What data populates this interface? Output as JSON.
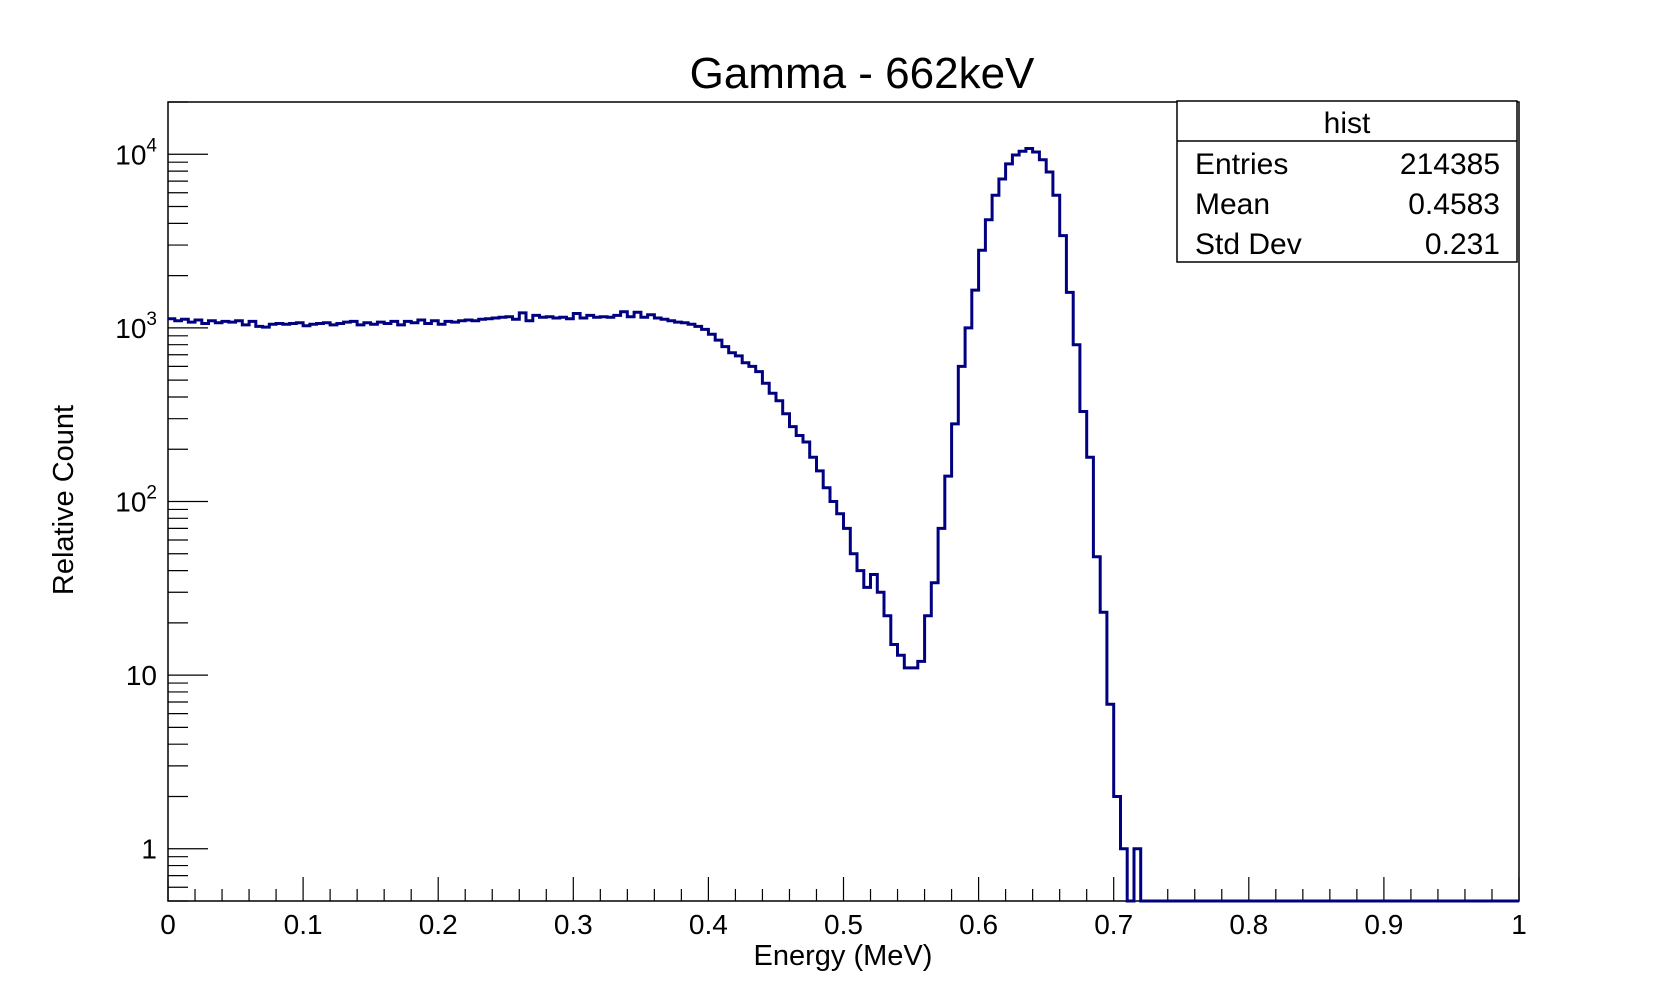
{
  "chart_data": {
    "type": "histogram",
    "title": "Gamma - 662keV",
    "xlabel": "Energy (MeV)",
    "ylabel": "Relative Count",
    "xlim": [
      0,
      1
    ],
    "ylim": [
      0.5,
      20000
    ],
    "y_scale": "log",
    "grid": false,
    "x_tick_labels": [
      "0",
      "0.1",
      "0.2",
      "0.3",
      "0.4",
      "0.5",
      "0.6",
      "0.7",
      "0.8",
      "0.9",
      "1"
    ],
    "y_tick_labels": [
      {
        "value": 1,
        "base": "1",
        "exp": ""
      },
      {
        "value": 10,
        "base": "10",
        "exp": ""
      },
      {
        "value": 100,
        "base": "10",
        "exp": "2"
      },
      {
        "value": 1000,
        "base": "10",
        "exp": "3"
      },
      {
        "value": 10000,
        "base": "10",
        "exp": "4"
      }
    ],
    "series": [
      {
        "color": "#000080",
        "bin_width": 0.005,
        "x_start": 0,
        "values": [
          1130,
          1100,
          1120,
          1080,
          1110,
          1060,
          1100,
          1070,
          1090,
          1080,
          1100,
          1040,
          1090,
          1020,
          1010,
          1050,
          1060,
          1050,
          1060,
          1070,
          1030,
          1050,
          1060,
          1070,
          1040,
          1060,
          1080,
          1090,
          1040,
          1070,
          1050,
          1080,
          1060,
          1090,
          1040,
          1090,
          1070,
          1110,
          1060,
          1100,
          1050,
          1090,
          1080,
          1100,
          1110,
          1100,
          1120,
          1130,
          1140,
          1150,
          1160,
          1120,
          1220,
          1100,
          1180,
          1150,
          1160,
          1140,
          1150,
          1130,
          1210,
          1140,
          1180,
          1150,
          1160,
          1150,
          1180,
          1240,
          1160,
          1230,
          1150,
          1190,
          1140,
          1120,
          1100,
          1080,
          1070,
          1050,
          1020,
          980,
          920,
          850,
          780,
          720,
          690,
          630,
          600,
          560,
          480,
          420,
          380,
          320,
          270,
          240,
          220,
          180,
          150,
          120,
          100,
          85,
          70,
          50,
          40,
          32,
          38,
          30,
          22,
          15,
          13,
          11,
          11,
          12,
          22,
          34,
          70,
          140,
          280,
          600,
          1000,
          1650,
          2800,
          4200,
          5800,
          7200,
          8800,
          9900,
          10400,
          10800,
          10300,
          9300,
          7900,
          5800,
          3400,
          1600,
          800,
          330,
          180,
          48,
          23,
          6.8,
          2.0,
          1.0,
          0,
          1.0,
          0,
          0,
          0,
          0,
          0,
          0,
          0,
          0,
          0,
          0,
          0,
          0,
          0,
          0,
          0,
          0,
          0,
          0,
          0,
          0,
          0,
          0,
          0,
          0,
          0,
          0,
          0,
          0,
          0,
          0,
          0,
          0,
          0,
          0,
          0,
          0,
          0,
          0,
          0,
          0,
          0,
          0,
          0,
          0,
          0,
          0,
          0,
          0,
          0,
          0,
          0,
          0,
          0,
          0,
          0,
          0
        ]
      }
    ]
  },
  "stats_box": {
    "title": "hist",
    "rows": [
      {
        "label": "Entries",
        "value": "214385"
      },
      {
        "label": "Mean",
        "value": "0.4583"
      },
      {
        "label": "Std Dev",
        "value": "0.231"
      }
    ]
  }
}
